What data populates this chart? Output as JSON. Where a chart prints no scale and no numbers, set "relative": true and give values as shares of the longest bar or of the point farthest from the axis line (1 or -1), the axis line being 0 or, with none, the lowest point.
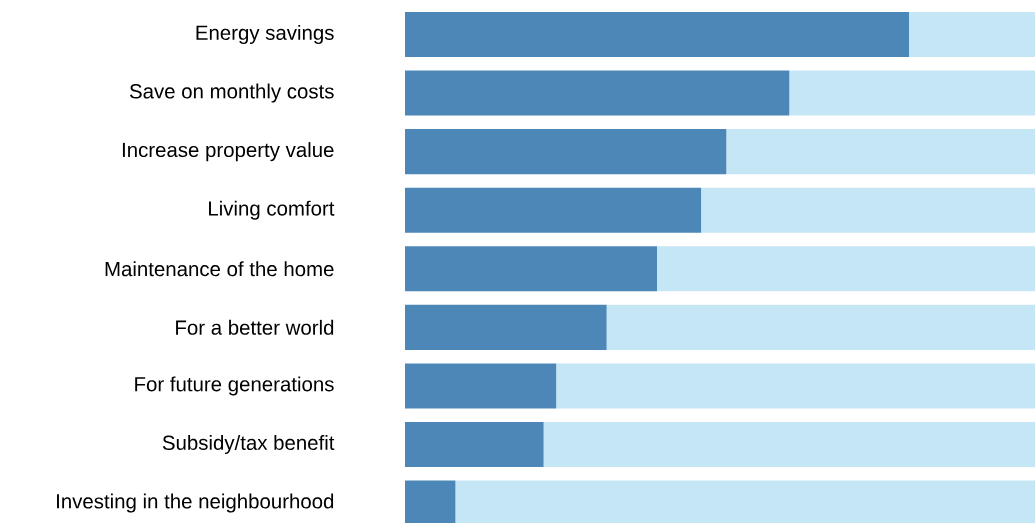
{
  "chart_data": {
    "type": "bar",
    "orientation": "horizontal",
    "stacked": true,
    "relative": true,
    "categories": [
      "Energy savings",
      "Save on monthly costs",
      "Increase property value",
      "Living comfort",
      "Maintenance of the home",
      "For a better world",
      "For future generations",
      "Subsidy/tax benefit",
      "Investing in the neighbourhood"
    ],
    "series": [
      {
        "color": "#4d87b8",
        "values": [
          0.8,
          0.61,
          0.51,
          0.47,
          0.4,
          0.32,
          0.24,
          0.22,
          0.08
        ]
      },
      {
        "color": "#c5e6f5",
        "values": [
          0.2,
          0.39,
          0.49,
          0.53,
          0.6,
          0.68,
          0.76,
          0.78,
          0.92
        ]
      }
    ]
  }
}
